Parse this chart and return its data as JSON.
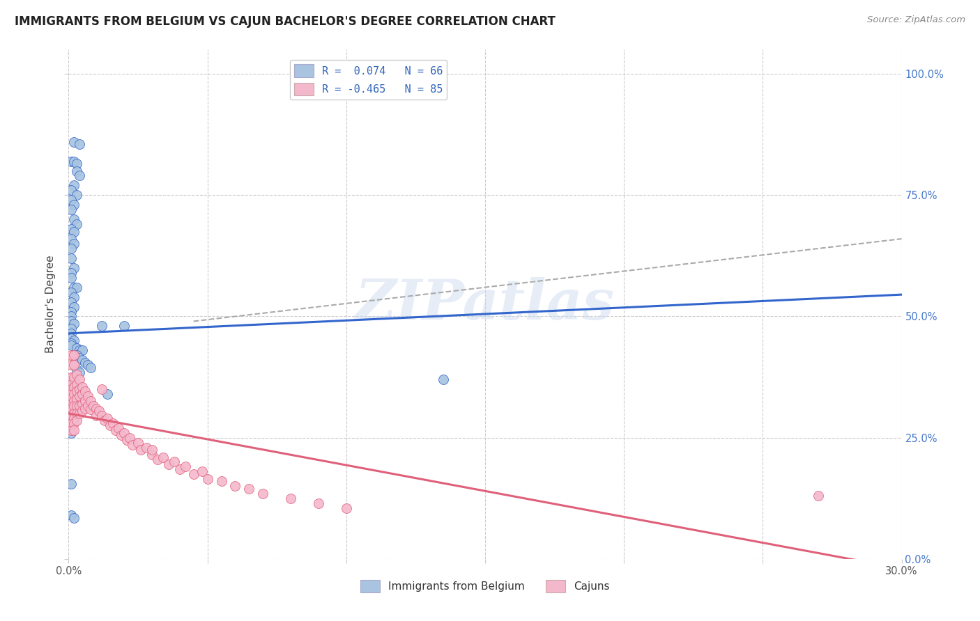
{
  "title": "IMMIGRANTS FROM BELGIUM VS CAJUN BACHELOR'S DEGREE CORRELATION CHART",
  "source": "Source: ZipAtlas.com",
  "ylabel": "Bachelor's Degree",
  "legend_label1": "R =  0.074   N = 66",
  "legend_label2": "R = -0.465   N = 85",
  "legend_bottom_label1": "Immigrants from Belgium",
  "legend_bottom_label2": "Cajuns",
  "blue_color": "#a8c4e0",
  "pink_color": "#f4b8cc",
  "trendline_blue": "#3366cc",
  "trendline_pink": "#e0607a",
  "trendline_gray": "#aaaaaa",
  "watermark": "ZIPatlas",
  "xmin": 0.0,
  "xmax": 0.3,
  "ymin": 0.0,
  "ymax": 1.05,
  "blue_trend_x": [
    0.0,
    0.3
  ],
  "blue_trend_y": [
    0.465,
    0.545
  ],
  "pink_trend_x": [
    0.0,
    0.3
  ],
  "pink_trend_y": [
    0.3,
    -0.02
  ],
  "gray_trend_x": [
    0.045,
    0.3
  ],
  "gray_trend_y": [
    0.49,
    0.66
  ],
  "blue_scatter_x": [
    0.002,
    0.004,
    0.001,
    0.002,
    0.003,
    0.003,
    0.004,
    0.002,
    0.001,
    0.003,
    0.001,
    0.002,
    0.001,
    0.002,
    0.003,
    0.001,
    0.002,
    0.001,
    0.002,
    0.001,
    0.001,
    0.002,
    0.001,
    0.001,
    0.002,
    0.003,
    0.001,
    0.002,
    0.001,
    0.002,
    0.001,
    0.001,
    0.001,
    0.002,
    0.001,
    0.001,
    0.001,
    0.002,
    0.001,
    0.001,
    0.003,
    0.004,
    0.005,
    0.003,
    0.004,
    0.005,
    0.006,
    0.007,
    0.008,
    0.003,
    0.004,
    0.012,
    0.02,
    0.001,
    0.001,
    0.002,
    0.002,
    0.003,
    0.001,
    0.001,
    0.001,
    0.001,
    0.014,
    0.001,
    0.002,
    0.135
  ],
  "blue_scatter_y": [
    0.86,
    0.855,
    0.82,
    0.82,
    0.815,
    0.8,
    0.79,
    0.77,
    0.76,
    0.75,
    0.74,
    0.73,
    0.72,
    0.7,
    0.69,
    0.68,
    0.675,
    0.66,
    0.65,
    0.64,
    0.62,
    0.6,
    0.59,
    0.58,
    0.56,
    0.56,
    0.55,
    0.54,
    0.53,
    0.52,
    0.51,
    0.5,
    0.49,
    0.485,
    0.475,
    0.465,
    0.455,
    0.45,
    0.445,
    0.44,
    0.435,
    0.43,
    0.43,
    0.42,
    0.415,
    0.41,
    0.405,
    0.4,
    0.395,
    0.39,
    0.385,
    0.48,
    0.48,
    0.36,
    0.355,
    0.35,
    0.345,
    0.34,
    0.31,
    0.295,
    0.26,
    0.155,
    0.34,
    0.09,
    0.085,
    0.37
  ],
  "pink_scatter_x": [
    0.001,
    0.001,
    0.001,
    0.001,
    0.001,
    0.001,
    0.001,
    0.001,
    0.001,
    0.001,
    0.001,
    0.001,
    0.002,
    0.002,
    0.002,
    0.002,
    0.002,
    0.002,
    0.002,
    0.002,
    0.002,
    0.002,
    0.002,
    0.003,
    0.003,
    0.003,
    0.003,
    0.003,
    0.003,
    0.003,
    0.004,
    0.004,
    0.004,
    0.004,
    0.004,
    0.005,
    0.005,
    0.005,
    0.005,
    0.006,
    0.006,
    0.006,
    0.007,
    0.007,
    0.008,
    0.008,
    0.009,
    0.01,
    0.01,
    0.011,
    0.012,
    0.012,
    0.013,
    0.014,
    0.015,
    0.016,
    0.017,
    0.018,
    0.019,
    0.02,
    0.021,
    0.022,
    0.023,
    0.025,
    0.026,
    0.028,
    0.03,
    0.03,
    0.032,
    0.034,
    0.036,
    0.038,
    0.04,
    0.042,
    0.045,
    0.048,
    0.05,
    0.055,
    0.06,
    0.065,
    0.07,
    0.08,
    0.09,
    0.1,
    0.27
  ],
  "pink_scatter_y": [
    0.42,
    0.4,
    0.375,
    0.36,
    0.35,
    0.34,
    0.33,
    0.32,
    0.31,
    0.295,
    0.28,
    0.265,
    0.42,
    0.4,
    0.375,
    0.355,
    0.34,
    0.325,
    0.315,
    0.3,
    0.29,
    0.28,
    0.265,
    0.38,
    0.36,
    0.345,
    0.33,
    0.315,
    0.3,
    0.285,
    0.37,
    0.35,
    0.335,
    0.315,
    0.3,
    0.355,
    0.34,
    0.32,
    0.305,
    0.345,
    0.325,
    0.31,
    0.335,
    0.315,
    0.325,
    0.308,
    0.315,
    0.31,
    0.295,
    0.305,
    0.295,
    0.35,
    0.285,
    0.29,
    0.275,
    0.28,
    0.265,
    0.27,
    0.255,
    0.26,
    0.245,
    0.25,
    0.235,
    0.24,
    0.225,
    0.23,
    0.215,
    0.225,
    0.205,
    0.21,
    0.195,
    0.2,
    0.185,
    0.19,
    0.175,
    0.18,
    0.165,
    0.16,
    0.15,
    0.145,
    0.135,
    0.125,
    0.115,
    0.105,
    0.13
  ]
}
